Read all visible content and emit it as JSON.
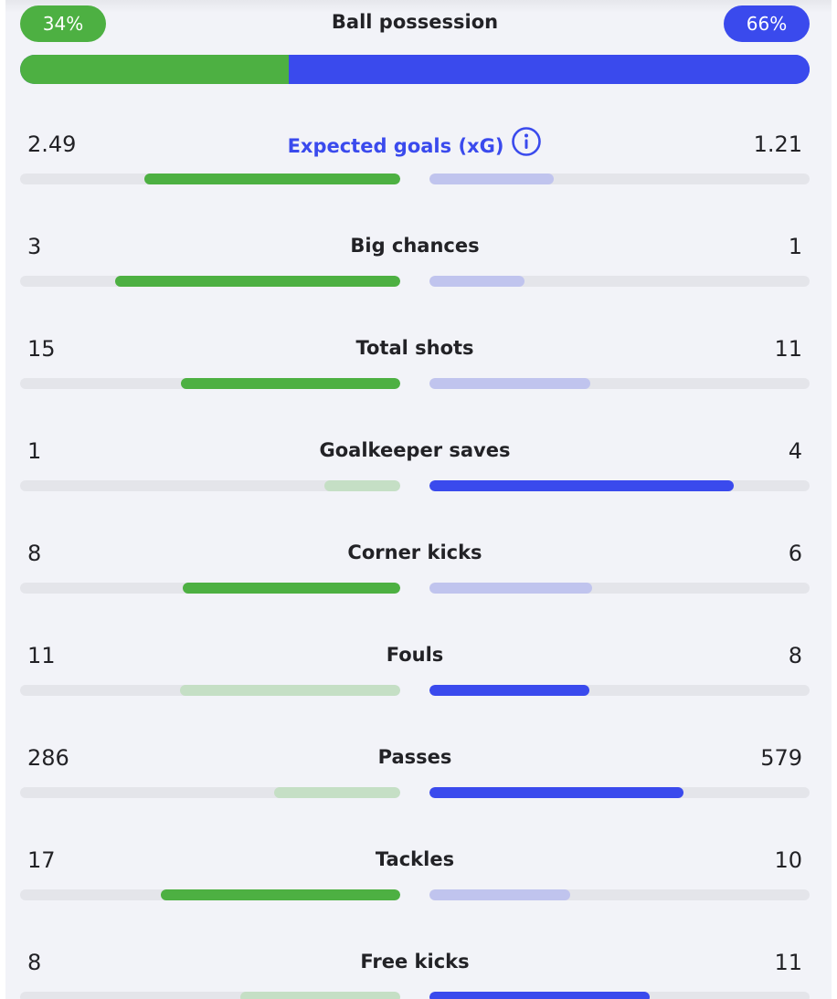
{
  "colors": {
    "home_strong": "#4db042",
    "home_weak": "#c5dfc5",
    "away_strong": "#3a4aed",
    "away_weak": "#c0c4ee"
  },
  "possession": {
    "label": "Ball possession",
    "home": "34%",
    "away": "66%",
    "home_fraction": 0.34
  },
  "stats": [
    {
      "label": "Expected goals (xG)",
      "home": "2.49",
      "away": "1.21",
      "info_icon": "info-icon",
      "home_fraction": 0.673,
      "away_fraction": 0.327,
      "leader": "home"
    },
    {
      "label": "Big chances",
      "home": "3",
      "away": "1",
      "home_fraction": 0.75,
      "away_fraction": 0.25,
      "leader": "home"
    },
    {
      "label": "Total shots",
      "home": "15",
      "away": "11",
      "home_fraction": 0.577,
      "away_fraction": 0.423,
      "leader": "home"
    },
    {
      "label": "Goalkeeper saves",
      "home": "1",
      "away": "4",
      "home_fraction": 0.2,
      "away_fraction": 0.8,
      "leader": "away"
    },
    {
      "label": "Corner kicks",
      "home": "8",
      "away": "6",
      "home_fraction": 0.571,
      "away_fraction": 0.429,
      "leader": "home"
    },
    {
      "label": "Fouls",
      "home": "11",
      "away": "8",
      "home_fraction": 0.579,
      "away_fraction": 0.421,
      "leader": "away"
    },
    {
      "label": "Passes",
      "home": "286",
      "away": "579",
      "home_fraction": 0.331,
      "away_fraction": 0.669,
      "leader": "away"
    },
    {
      "label": "Tackles",
      "home": "17",
      "away": "10",
      "home_fraction": 0.63,
      "away_fraction": 0.37,
      "leader": "home"
    },
    {
      "label": "Free kicks",
      "home": "8",
      "away": "11",
      "home_fraction": 0.421,
      "away_fraction": 0.579,
      "leader": "away"
    }
  ]
}
